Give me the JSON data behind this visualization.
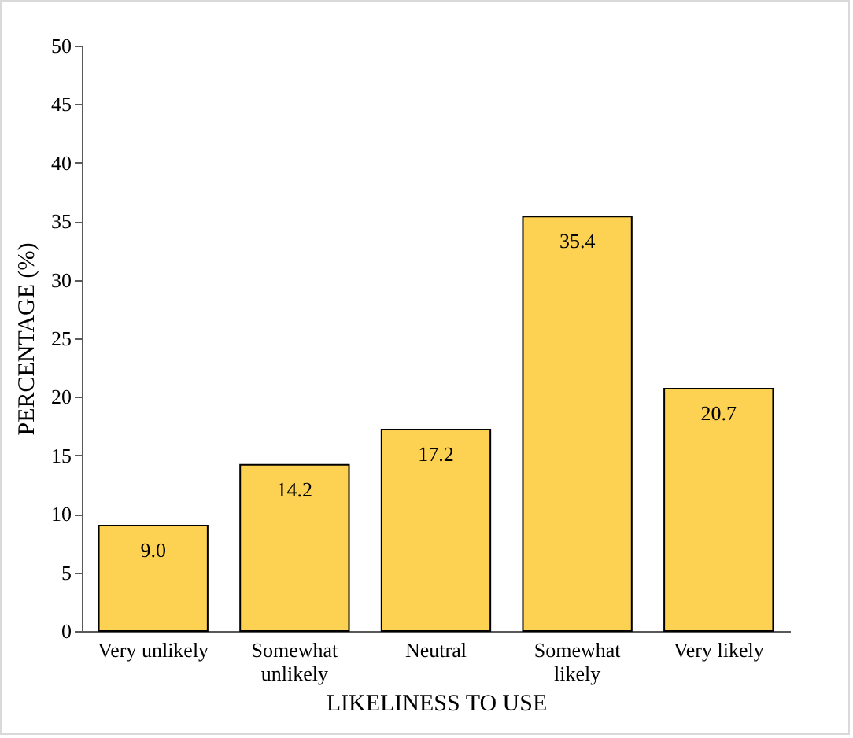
{
  "chart_data": {
    "type": "bar",
    "xlabel": "LIKELINESS TO USE",
    "ylabel": "PERCENTAGE (%)",
    "categories": [
      "Very unlikely",
      "Somewhat unlikely",
      "Neutral",
      "Somewhat likely",
      "Very likely"
    ],
    "values": [
      9.0,
      14.2,
      17.2,
      35.4,
      20.7
    ],
    "value_labels": [
      "9.0",
      "14.2",
      "17.2",
      "35.4",
      "20.7"
    ],
    "color": "#fdd152",
    "ylim": [
      0,
      50
    ],
    "yticks": [
      0,
      5,
      10,
      15,
      20,
      25,
      30,
      35,
      40,
      45,
      50
    ],
    "grid": false
  }
}
